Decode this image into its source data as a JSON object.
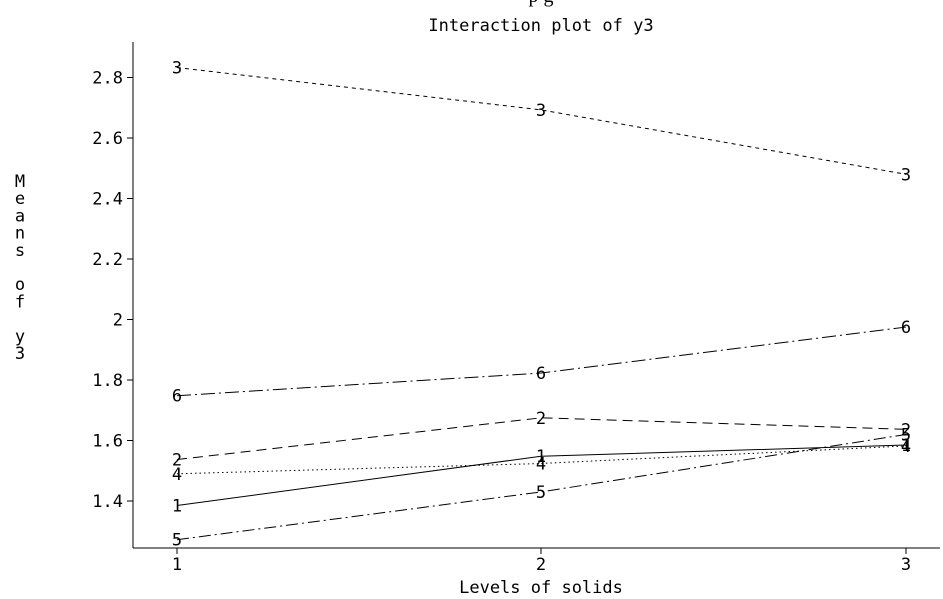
{
  "chart_data": {
    "type": "line",
    "title": "Interaction plot of y3",
    "xlabel": "Levels of solids",
    "ylabel": "Means of y3",
    "x": [
      1,
      2,
      3
    ],
    "xticks": [
      "1",
      "2",
      "3"
    ],
    "yticks": [
      "1.4",
      "1.6",
      "1.8",
      "2",
      "2.2",
      "2.4",
      "2.6",
      "2.8"
    ],
    "ylim": [
      1.25,
      2.85
    ],
    "grid": false,
    "series": [
      {
        "name": "1",
        "values": [
          1.385,
          1.548,
          1.585
        ],
        "dash": ""
      },
      {
        "name": "2",
        "values": [
          1.537,
          1.675,
          1.637
        ],
        "dash": "10 6"
      },
      {
        "name": "3",
        "values": [
          2.833,
          2.693,
          2.48
        ],
        "dash": "4 4"
      },
      {
        "name": "4",
        "values": [
          1.49,
          1.524,
          1.582
        ],
        "dash": "1.5 3"
      },
      {
        "name": "5",
        "values": [
          1.272,
          1.43,
          1.62
        ],
        "dash": "12 4 2 4"
      },
      {
        "name": "6",
        "values": [
          1.748,
          1.823,
          1.975
        ],
        "dash": "14 4 2 4"
      }
    ]
  }
}
